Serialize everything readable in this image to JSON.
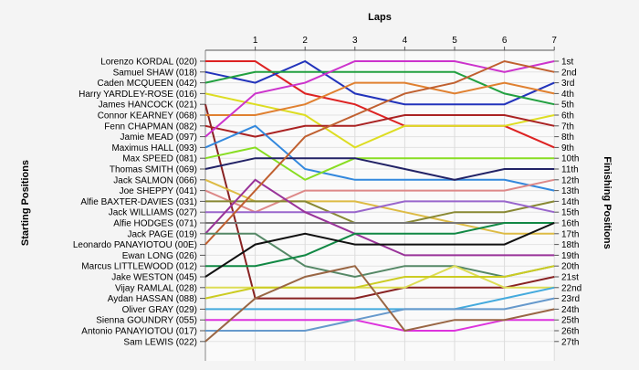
{
  "chart_data": {
    "type": "line",
    "title": "Laps",
    "left_axis_label": "Starting Positions",
    "right_axis_label": "Finishing Positions",
    "laps": [
      "1",
      "2",
      "3",
      "4",
      "5",
      "6",
      "7"
    ],
    "finishing_labels": [
      "1st",
      "2nd",
      "3rd",
      "4th",
      "5th",
      "6th",
      "7th",
      "8th",
      "9th",
      "10th",
      "11th",
      "12th",
      "13th",
      "14th",
      "15th",
      "16th",
      "17th",
      "18th",
      "19th",
      "20th",
      "21st",
      "22nd",
      "23rd",
      "24th",
      "25th",
      "26th",
      "27th"
    ],
    "y_reversed": true,
    "grid": true,
    "series": [
      {
        "name": "Lorenzo KORDAL (020)",
        "color": "#dd2222",
        "positions": [
          1,
          1,
          4,
          5,
          7,
          7,
          7,
          9
        ]
      },
      {
        "name": "Samuel SHAW (018)",
        "color": "#2233bb",
        "positions": [
          2,
          3,
          1,
          4,
          5,
          5,
          5,
          3
        ]
      },
      {
        "name": "Caden MCQUEEN (042)",
        "color": "#22a040",
        "positions": [
          3,
          2,
          2,
          2,
          2,
          2,
          4,
          5
        ]
      },
      {
        "name": "Harry YARDLEY-ROSE (016)",
        "color": "#dddd22",
        "positions": [
          4,
          5,
          6,
          9,
          7,
          7,
          7,
          6
        ]
      },
      {
        "name": "James HANCOCK (021)",
        "color": "#882222",
        "positions": [
          5,
          23,
          23,
          23,
          22,
          22,
          22,
          21
        ]
      },
      {
        "name": "Connor KEARNEY (068)",
        "color": "#e08030",
        "positions": [
          6,
          6,
          5,
          3,
          3,
          4,
          3,
          4
        ]
      },
      {
        "name": "Fenn CHAPMAN (082)",
        "color": "#aa2222",
        "positions": [
          7,
          8,
          7,
          7,
          6,
          6,
          6,
          7
        ]
      },
      {
        "name": "Jamie MEAD (097)",
        "color": "#cc33cc",
        "positions": [
          8,
          4,
          3,
          1,
          1,
          1,
          2,
          1
        ]
      },
      {
        "name": "Maximus HALL (093)",
        "color": "#3388dd",
        "positions": [
          9,
          7,
          11,
          12,
          12,
          12,
          12,
          13
        ]
      },
      {
        "name": "Max SPEED (081)",
        "color": "#88dd22",
        "positions": [
          10,
          9,
          12,
          10,
          10,
          10,
          10,
          10
        ]
      },
      {
        "name": "Thomas SMITH (069)",
        "color": "#222266",
        "positions": [
          11,
          10,
          10,
          10,
          11,
          12,
          11,
          11
        ]
      },
      {
        "name": "Jack SALMON (066)",
        "color": "#ddbb44",
        "positions": [
          12,
          14,
          14,
          14,
          15,
          16,
          17,
          17
        ]
      },
      {
        "name": "Joe SHEPPY (041)",
        "color": "#dd8888",
        "positions": [
          13,
          15,
          13,
          13,
          13,
          13,
          13,
          12
        ]
      },
      {
        "name": "Alfie BAXTER-DAVIES (031)",
        "color": "#888833",
        "positions": [
          14,
          14,
          14,
          16,
          16,
          15,
          15,
          14
        ]
      },
      {
        "name": "Jack WILLIAMS (027)",
        "color": "#9966cc",
        "positions": [
          15,
          15,
          15,
          15,
          14,
          14,
          14,
          15
        ]
      },
      {
        "name": "Alfie HODGES (071)",
        "color": "#777777",
        "positions": [
          16,
          16,
          16,
          16,
          16,
          16,
          16,
          16
        ]
      },
      {
        "name": "Jack PAGE (019)",
        "color": "#993399",
        "positions": [
          17,
          12,
          15,
          17,
          19,
          19,
          19,
          19
        ]
      },
      {
        "name": "Leonardo PANAYIOTOU (00E)",
        "color": "#c06030",
        "positions": [
          18,
          13,
          8,
          6,
          4,
          3,
          1,
          2
        ]
      },
      {
        "name": "Ewan LONG (026)",
        "color": "#558866",
        "positions": [
          17,
          17,
          20,
          21,
          20,
          20,
          21,
          20
        ]
      },
      {
        "name": "Marcus LITTLEWOOD (012)",
        "color": "#118844",
        "positions": [
          20,
          20,
          19,
          17,
          17,
          17,
          16,
          16
        ]
      },
      {
        "name": "Jake WESTON (045)",
        "color": "#111111",
        "positions": [
          21,
          18,
          17,
          18,
          18,
          18,
          18,
          16
        ]
      },
      {
        "name": "Vijay RAMLAL (028)",
        "color": "#dddd55",
        "positions": [
          22,
          22,
          22,
          22,
          22,
          20,
          22,
          22
        ]
      },
      {
        "name": "Aydan HASSAN (088)",
        "color": "#cccc22",
        "positions": [
          23,
          22,
          22,
          22,
          21,
          21,
          21,
          20
        ]
      },
      {
        "name": "Oliver GRAY (029)",
        "color": "#44aadd",
        "positions": [
          24,
          24,
          24,
          24,
          24,
          24,
          23,
          22
        ]
      },
      {
        "name": "Sienna GOUNDRY (055)",
        "color": "#dd33dd",
        "positions": [
          25,
          25,
          25,
          25,
          26,
          26,
          25,
          25
        ]
      },
      {
        "name": "Antonio PANAYIOTOU (017)",
        "color": "#6699cc",
        "positions": [
          26,
          26,
          26,
          25,
          24,
          24,
          24,
          23
        ]
      },
      {
        "name": "Sam LEWIS (022)",
        "color": "#996644",
        "positions": [
          27,
          23,
          21,
          20,
          26,
          25,
          25,
          24
        ]
      }
    ]
  }
}
